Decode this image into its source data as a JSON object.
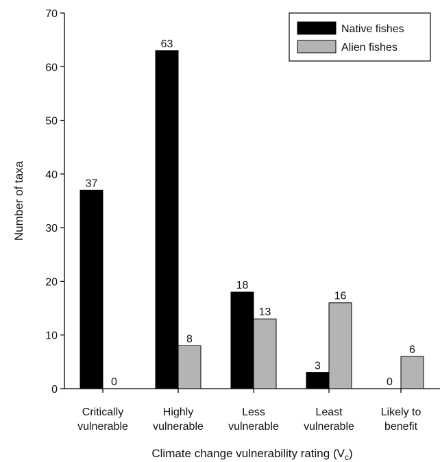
{
  "chart_data": {
    "type": "bar",
    "categories": [
      [
        "Critically",
        "vulnerable"
      ],
      [
        "Highly",
        "vulnerable"
      ],
      [
        "Less",
        "vulnerable"
      ],
      [
        "Least",
        "vulnerable"
      ],
      [
        "Likely to",
        "benefit"
      ]
    ],
    "series": [
      {
        "name": "Native fishes",
        "values": [
          37,
          63,
          18,
          3,
          0
        ],
        "color": "#000000"
      },
      {
        "name": "Alien fishes",
        "values": [
          0,
          8,
          13,
          16,
          6
        ],
        "color": "#b4b4b4"
      }
    ],
    "data_labels": true,
    "title": "",
    "xlabel": "Climate change vulnerability rating (V",
    "xlabel_subscript": "c",
    "xlabel_suffix": ")",
    "ylabel": "Number of taxa",
    "ylim": [
      0,
      70
    ],
    "yticks": [
      0,
      10,
      20,
      30,
      40,
      50,
      60,
      70
    ],
    "grid": false,
    "legend_position": "top-right"
  }
}
